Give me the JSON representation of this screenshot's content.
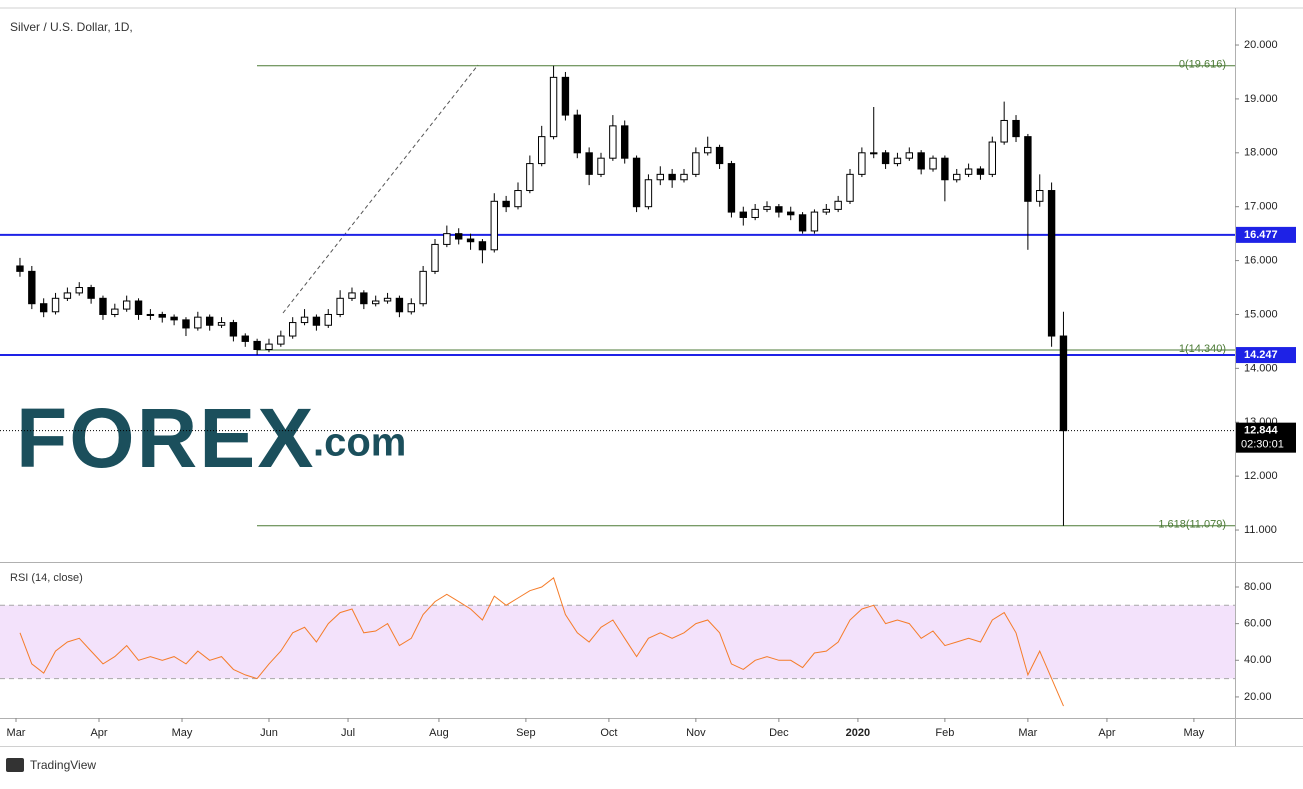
{
  "chart_data": [
    {
      "type": "candlestick",
      "title": "Silver / U.S. Dollar, 1D,",
      "xlim": [
        -4.05,
        308.4
      ],
      "xticks": [
        {
          "value": 0,
          "label": "Mar"
        },
        {
          "value": 21,
          "label": "Apr"
        },
        {
          "value": 42,
          "label": "May"
        },
        {
          "value": 64,
          "label": "Jun"
        },
        {
          "value": 84,
          "label": "Jul"
        },
        {
          "value": 107,
          "label": "Aug"
        },
        {
          "value": 129,
          "label": "Sep"
        },
        {
          "value": 150,
          "label": "Oct"
        },
        {
          "value": 172,
          "label": "Nov"
        },
        {
          "value": 193,
          "label": "Dec"
        },
        {
          "value": 213,
          "label": "2020"
        },
        {
          "value": 235,
          "label": "Feb"
        },
        {
          "value": 256,
          "label": "Mar"
        },
        {
          "value": 276,
          "label": "Apr"
        },
        {
          "value": 298,
          "label": "May"
        }
      ],
      "ylim": [
        10.444,
        20.687
      ],
      "yticks": [
        {
          "value": 11,
          "label": "11.000"
        },
        {
          "value": 12,
          "label": "12.000"
        },
        {
          "value": 13,
          "label": "13.000"
        },
        {
          "value": 14,
          "label": "14.000"
        },
        {
          "value": 15,
          "label": "15.000"
        },
        {
          "value": 16,
          "label": "16.000"
        },
        {
          "value": 17,
          "label": "17.000"
        },
        {
          "value": 18,
          "label": "18.000"
        },
        {
          "value": 19,
          "label": "19.000"
        },
        {
          "value": 20,
          "label": "20.000"
        }
      ],
      "grid": false,
      "up_color": "#ffffff",
      "down_color": "#000000",
      "x": [
        1,
        4,
        7,
        10,
        13,
        16,
        19,
        22,
        25,
        28,
        31,
        34,
        37,
        40,
        43,
        46,
        49,
        52,
        55,
        58,
        61,
        64,
        67,
        70,
        73,
        76,
        79,
        82,
        85,
        88,
        91,
        94,
        97,
        100,
        103,
        106,
        109,
        112,
        115,
        118,
        121,
        124,
        127,
        130,
        133,
        136,
        139,
        142,
        145,
        148,
        151,
        154,
        157,
        160,
        163,
        166,
        169,
        172,
        175,
        178,
        181,
        184,
        187,
        190,
        193,
        196,
        199,
        202,
        205,
        208,
        211,
        214,
        217,
        220,
        223,
        226,
        229,
        232,
        235,
        238,
        241,
        244,
        247,
        250,
        253,
        256,
        259,
        262,
        265
      ],
      "candles": [
        [
          15.9,
          16.05,
          15.7,
          15.8
        ],
        [
          15.8,
          15.9,
          15.1,
          15.2
        ],
        [
          15.2,
          15.3,
          14.95,
          15.05
        ],
        [
          15.05,
          15.4,
          15.0,
          15.3
        ],
        [
          15.3,
          15.5,
          15.25,
          15.4
        ],
        [
          15.4,
          15.6,
          15.35,
          15.5
        ],
        [
          15.5,
          15.55,
          15.2,
          15.3
        ],
        [
          15.3,
          15.35,
          14.9,
          15.0
        ],
        [
          15.0,
          15.2,
          14.95,
          15.1
        ],
        [
          15.1,
          15.35,
          15.05,
          15.25
        ],
        [
          15.25,
          15.3,
          14.9,
          15.0
        ],
        [
          15.0,
          15.1,
          14.9,
          15.0
        ],
        [
          15.0,
          15.05,
          14.85,
          14.95
        ],
        [
          14.95,
          15.0,
          14.8,
          14.9
        ],
        [
          14.9,
          14.95,
          14.6,
          14.75
        ],
        [
          14.75,
          15.05,
          14.7,
          14.95
        ],
        [
          14.95,
          15.0,
          14.7,
          14.8
        ],
        [
          14.8,
          14.95,
          14.75,
          14.85
        ],
        [
          14.85,
          14.9,
          14.5,
          14.6
        ],
        [
          14.6,
          14.65,
          14.4,
          14.5
        ],
        [
          14.5,
          14.55,
          14.25,
          14.35
        ],
        [
          14.35,
          14.55,
          14.3,
          14.45
        ],
        [
          14.45,
          14.7,
          14.4,
          14.6
        ],
        [
          14.6,
          14.95,
          14.55,
          14.85
        ],
        [
          14.85,
          15.1,
          14.8,
          14.95
        ],
        [
          14.95,
          15.0,
          14.7,
          14.8
        ],
        [
          14.8,
          15.1,
          14.75,
          15.0
        ],
        [
          15.0,
          15.45,
          14.95,
          15.3
        ],
        [
          15.3,
          15.5,
          15.25,
          15.4
        ],
        [
          15.4,
          15.45,
          15.1,
          15.2
        ],
        [
          15.2,
          15.35,
          15.15,
          15.25
        ],
        [
          15.25,
          15.4,
          15.2,
          15.3
        ],
        [
          15.3,
          15.35,
          14.95,
          15.05
        ],
        [
          15.05,
          15.3,
          15.0,
          15.2
        ],
        [
          15.2,
          15.9,
          15.15,
          15.8
        ],
        [
          15.8,
          16.4,
          15.75,
          16.3
        ],
        [
          16.3,
          16.65,
          16.25,
          16.5
        ],
        [
          16.5,
          16.6,
          16.3,
          16.4
        ],
        [
          16.4,
          16.5,
          16.2,
          16.35
        ],
        [
          16.35,
          16.4,
          15.95,
          16.2
        ],
        [
          16.2,
          17.25,
          16.15,
          17.1
        ],
        [
          17.1,
          17.2,
          16.9,
          17.0
        ],
        [
          17.0,
          17.45,
          16.95,
          17.3
        ],
        [
          17.3,
          17.95,
          17.25,
          17.8
        ],
        [
          17.8,
          18.5,
          17.75,
          18.3
        ],
        [
          18.3,
          19.616,
          18.25,
          19.4
        ],
        [
          19.4,
          19.5,
          18.6,
          18.7
        ],
        [
          18.7,
          18.8,
          17.9,
          18.0
        ],
        [
          18.0,
          18.1,
          17.4,
          17.6
        ],
        [
          17.6,
          18.0,
          17.55,
          17.9
        ],
        [
          17.9,
          18.7,
          17.85,
          18.5
        ],
        [
          18.5,
          18.6,
          17.8,
          17.9
        ],
        [
          17.9,
          17.95,
          16.9,
          17.0
        ],
        [
          17.0,
          17.6,
          16.95,
          17.5
        ],
        [
          17.5,
          17.75,
          17.4,
          17.6
        ],
        [
          17.6,
          17.7,
          17.35,
          17.5
        ],
        [
          17.5,
          17.7,
          17.45,
          17.6
        ],
        [
          17.6,
          18.1,
          17.55,
          18.0
        ],
        [
          18.0,
          18.3,
          17.95,
          18.1
        ],
        [
          18.1,
          18.15,
          17.7,
          17.8
        ],
        [
          17.8,
          17.85,
          16.8,
          16.9
        ],
        [
          16.9,
          17.0,
          16.65,
          16.8
        ],
        [
          16.8,
          17.05,
          16.75,
          16.95
        ],
        [
          16.95,
          17.1,
          16.9,
          17.0
        ],
        [
          17.0,
          17.05,
          16.8,
          16.9
        ],
        [
          16.9,
          17.0,
          16.75,
          16.85
        ],
        [
          16.85,
          16.9,
          16.5,
          16.55
        ],
        [
          16.55,
          16.95,
          16.5,
          16.9
        ],
        [
          16.9,
          17.05,
          16.85,
          16.95
        ],
        [
          16.95,
          17.2,
          16.9,
          17.1
        ],
        [
          17.1,
          17.7,
          17.05,
          17.6
        ],
        [
          17.6,
          18.1,
          17.55,
          18.0
        ],
        [
          18.0,
          18.85,
          17.9,
          18.0
        ],
        [
          18.0,
          18.05,
          17.7,
          17.8
        ],
        [
          17.8,
          18.0,
          17.75,
          17.9
        ],
        [
          17.9,
          18.1,
          17.85,
          18.0
        ],
        [
          18.0,
          18.05,
          17.6,
          17.7
        ],
        [
          17.7,
          17.95,
          17.65,
          17.9
        ],
        [
          17.9,
          17.95,
          17.1,
          17.5
        ],
        [
          17.5,
          17.7,
          17.45,
          17.6
        ],
        [
          17.6,
          17.8,
          17.55,
          17.7
        ],
        [
          17.7,
          17.75,
          17.5,
          17.6
        ],
        [
          17.6,
          18.3,
          17.55,
          18.2
        ],
        [
          18.2,
          18.95,
          18.15,
          18.6
        ],
        [
          18.6,
          18.7,
          18.2,
          18.3
        ],
        [
          18.3,
          18.35,
          16.2,
          17.1
        ],
        [
          17.1,
          17.6,
          17.0,
          17.3
        ],
        [
          17.3,
          17.45,
          14.4,
          14.6
        ],
        [
          14.6,
          15.05,
          11.079,
          12.844
        ]
      ],
      "levels": [
        {
          "value": 16.477,
          "color": "#1e22e6"
        },
        {
          "value": 14.247,
          "color": "#1e22e6"
        }
      ],
      "fib": {
        "color": "#4b7a35",
        "levels": [
          {
            "value": 19.616,
            "label": "0(19.616)"
          },
          {
            "value": 14.34,
            "label": "1(14.340)"
          },
          {
            "value": 11.079,
            "label": "1.618(11.079)"
          }
        ]
      },
      "last": {
        "value": 12.844,
        "countdown": "02:30:01"
      }
    },
    {
      "type": "line",
      "title": "RSI (14, close)",
      "color": "#f57c2a",
      "ylim": [
        8.5,
        92
      ],
      "yticks": [
        {
          "value": 20,
          "label": "20.00"
        },
        {
          "value": 40,
          "label": "40.00"
        },
        {
          "value": 60,
          "label": "60.00"
        },
        {
          "value": 80,
          "label": "80.00"
        }
      ],
      "band": [
        30,
        70
      ],
      "values": [
        55,
        38,
        33,
        45,
        50,
        52,
        45,
        38,
        42,
        48,
        40,
        42,
        40,
        42,
        38,
        45,
        40,
        42,
        35,
        32,
        30,
        38,
        45,
        55,
        58,
        50,
        60,
        66,
        68,
        55,
        56,
        60,
        48,
        52,
        65,
        72,
        76,
        72,
        68,
        62,
        75,
        70,
        74,
        78,
        80,
        85,
        65,
        55,
        50,
        58,
        62,
        52,
        42,
        52,
        55,
        52,
        55,
        60,
        62,
        55,
        38,
        35,
        40,
        42,
        40,
        40,
        36,
        44,
        45,
        50,
        62,
        68,
        70,
        60,
        62,
        60,
        52,
        56,
        48,
        50,
        52,
        50,
        62,
        66,
        55,
        32,
        45,
        30,
        15
      ]
    }
  ],
  "logo": {
    "brand": "FOREX",
    "suffix": ".com"
  },
  "footer": "TradingView"
}
